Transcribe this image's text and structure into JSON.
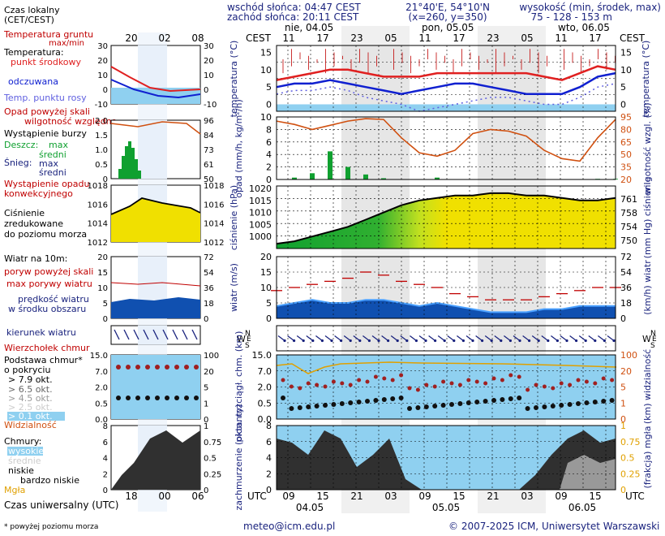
{
  "header": {
    "sunrise": "wschód słońca: 04:47 CEST",
    "sunset": "zachód słońca: 20:11 CEST",
    "coords": "21°40'E, 54°10'N",
    "grid": "(x=260, y=350)",
    "height_title": "wysokość (min, środek, max)",
    "height_values": "75 - 128 - 153 m"
  },
  "legend": {
    "local_time": "Czas lokalny",
    "local_time_zone": "(CET/CEST)",
    "hours_top": [
      "20",
      "02",
      "08"
    ],
    "hours_bottom": [
      "18",
      "00",
      "06"
    ],
    "ground_temp": "Temperatura gruntu",
    "max_min": "max/min",
    "temperature": "Temperatura:",
    "midpoint": "punkt środkowy",
    "perceived": "odczuwana",
    "dew_point": "Temp. punktu rosy",
    "rain_above": "Opad powyżej skali",
    "humidity": "wilgotność względna",
    "storm": "Wystąpienie burzy",
    "rain": "Deszcz:",
    "max": "max",
    "mean": "średni",
    "snow": "Śnieg:",
    "conv": "Wystąpienie opadu konwekcyjnego",
    "pressure": "Ciśnienie zredukowane do poziomu morza",
    "wind_title": "Wiatr na 10m:",
    "gust_above": "poryw powyżej skali",
    "max_gust": "max porywy wiatru",
    "wind_speed": "prędkość wiatru w środku obszaru",
    "wind_dir": "kierunek wiatru",
    "cloud_top": "Wierzchołek chmur",
    "cloud_base": "Podstawa chmur* o pokryciu",
    "okt": [
      "> 7.9 okt.",
      "> 6.5 okt.",
      "> 4.5 okt.",
      "> 2.5 okt.",
      "> 0.1 okt."
    ],
    "visibility": "Widzialność",
    "clouds": "Chmury:",
    "cloud_types": [
      "wysokie",
      "średnie",
      "niskie",
      "bardzo niskie"
    ],
    "fog": "Mgła",
    "utc": "Czas uniwersalny (UTC)",
    "footnote": "* powyżej poziomu morza"
  },
  "axes": {
    "cest": "CEST",
    "utc": "UTC",
    "days_top": [
      "nie, 04.05",
      "pon, 05.05",
      "wto, 06.05"
    ],
    "days_bottom": [
      "04.05",
      "05.05",
      "06.05"
    ],
    "hours_cest": [
      "11",
      "17",
      "23",
      "05",
      "11",
      "17",
      "23",
      "05",
      "11",
      "17"
    ],
    "hours_utc": [
      "09",
      "15",
      "21",
      "03",
      "09",
      "15",
      "21",
      "03",
      "09",
      "15"
    ],
    "temp_label": "temperatura (°C)",
    "rain_label": "opad (mm/h, kg/m²/h)",
    "humidity_label": "wilgotność wzgl. (%)",
    "pressure_label": "ciśnienie (hPa)",
    "pressure_label_r": "(mm Hg) ciśnienie",
    "wind_label": "wiatr (m/s)",
    "wind_label_r": "(km/h) wiatr",
    "cloud_label": "pion. rozciągł. chm. (km)",
    "vis_label": "(km) widzialność",
    "cover_label": "zachmurzenie (oktanty)",
    "fog_label": "(frakcja) mgła",
    "temp_ticks": [
      "15",
      "10",
      "5",
      "0"
    ],
    "rain_ticks": [
      "10",
      "8",
      "6",
      "4",
      "2",
      "0"
    ],
    "hum_ticks": [
      "95",
      "80",
      "65",
      "50",
      "35",
      "20"
    ],
    "press_ticks": [
      "1020",
      "1015",
      "1010",
      "1005",
      "1000"
    ],
    "press_ticks_r": [
      "761",
      "758",
      "754",
      "750"
    ],
    "wind_ticks": [
      "20",
      "15",
      "10",
      "5",
      "0"
    ],
    "wind_ticks_r": [
      "72",
      "54",
      "36",
      "18",
      "0"
    ],
    "cloud_ticks": [
      "15.0",
      "7.0",
      "2.0",
      "0.5",
      "0.0"
    ],
    "vis_ticks": [
      "100",
      "20",
      "5",
      "1",
      "0"
    ],
    "cover_ticks": [
      "8",
      "6",
      "4",
      "2",
      "0"
    ],
    "fog_ticks": [
      "1",
      "0.75",
      "0.5",
      "0.25",
      "0"
    ],
    "mini_temp_l": [
      "30",
      "20",
      "10",
      "0",
      "-10"
    ],
    "mini_temp_r": [
      "30",
      "20",
      "10",
      "0",
      "-10"
    ],
    "mini_rain_l": [
      "2.0",
      "1.5",
      "1.0",
      "0.5",
      "0"
    ],
    "mini_rain_r": [
      "96",
      "84",
      "73",
      "61",
      "50"
    ],
    "mini_press_l": [
      "1018",
      "1016",
      "1014",
      "1012"
    ],
    "mini_press_r": [
      "1018",
      "1016",
      "1014",
      "1012"
    ],
    "mini_wind_l": [
      "20",
      "15",
      "10",
      "5",
      "0"
    ],
    "mini_wind_r": [
      "72",
      "54",
      "36",
      "18",
      "0"
    ],
    "mini_cloud_l": [
      "15.0",
      "7.0",
      "2.0",
      "0.5",
      "0.0"
    ],
    "mini_cloud_r": [
      "100",
      "20",
      "5",
      "1",
      "0"
    ],
    "mini_cover_l": [
      "8",
      "6",
      "4",
      "2",
      "0"
    ],
    "mini_cover_r": [
      "1",
      "0.75",
      "0.5",
      "0.25",
      "0"
    ],
    "wind_n": "N",
    "wind_w": "W",
    "wind_e": "E",
    "wind_s": "S"
  },
  "footer": {
    "email": "meteo@icm.edu.pl",
    "copyright": "© 2007-2025 ICM, Uniwersytet Warszawski"
  },
  "colors": {
    "temp": "#e02020",
    "perceived": "#1020d0",
    "dew": "#6060e0",
    "humidity": "#d05010",
    "pressure_fill": "#f0e000",
    "pressure_low": "#10a030",
    "wind_fill": "#1050b0",
    "wind_green": "#10a030",
    "gust": "#c00000",
    "sky": "#8fd0f0",
    "cloud_dark": "#303030"
  },
  "chart_data": [
    {
      "type": "line",
      "x": [
        "04.05 09",
        "04.05 12",
        "04.05 15",
        "04.05 18",
        "04.05 21",
        "05.05 00",
        "05.05 03",
        "05.05 06",
        "05.05 09",
        "05.05 12",
        "05.05 15",
        "05.05 18",
        "05.05 21",
        "06.05 00",
        "06.05 03",
        "06.05 06",
        "06.05 09",
        "06.05 12",
        "06.05 15",
        "06.05 18"
      ],
      "series": [
        {
          "values": [
            7,
            8,
            9,
            10,
            10,
            9,
            8,
            8,
            8,
            9,
            9,
            9,
            9,
            9,
            9,
            8,
            7,
            9,
            11,
            10
          ]
        },
        {
          "values": [
            5,
            6,
            6,
            7,
            6,
            5,
            4,
            3,
            4,
            5,
            6,
            6,
            5,
            4,
            3,
            3,
            3,
            5,
            8,
            9
          ]
        },
        {
          "values": [
            3,
            4,
            4,
            5,
            4,
            2,
            1,
            0,
            -2,
            -1,
            0,
            1,
            2,
            2,
            1,
            0,
            0,
            2,
            5,
            6
          ]
        }
      ],
      "ylim": [
        -2,
        17
      ],
      "ylabel": "temperatura (°C)"
    },
    {
      "type": "bar",
      "x": [
        "04.05 09",
        "04.05 12",
        "04.05 15",
        "04.05 18",
        "04.05 21",
        "05.05 00",
        "05.05 03",
        "05.05 06",
        "05.05 09",
        "05.05 12",
        "05.05 15",
        "05.05 18",
        "05.05 21",
        "06.05 00",
        "06.05 03",
        "06.05 06",
        "06.05 09",
        "06.05 12",
        "06.05 15",
        "06.05 18"
      ],
      "values": [
        0,
        0.3,
        1.0,
        4.5,
        2.0,
        0.8,
        0.2,
        0,
        0,
        0.3,
        0,
        0,
        0,
        0,
        0,
        0,
        0,
        0,
        0.1,
        0.1
      ],
      "humidity": [
        90,
        86,
        80,
        85,
        90,
        93,
        92,
        70,
        52,
        48,
        55,
        75,
        80,
        78,
        72,
        55,
        45,
        42,
        70,
        92
      ],
      "ylim": [
        0,
        10
      ],
      "ylabel": "opad (mm/h, kg/m²/h)"
    },
    {
      "type": "area",
      "x": [
        "04.05 09",
        "04.05 12",
        "04.05 15",
        "04.05 18",
        "04.05 21",
        "05.05 00",
        "05.05 03",
        "05.05 06",
        "05.05 09",
        "05.05 12",
        "05.05 15",
        "05.05 18",
        "05.05 21",
        "06.05 00",
        "06.05 03",
        "06.05 06",
        "06.05 09",
        "06.05 12",
        "06.05 15",
        "06.05 18"
      ],
      "values": [
        997,
        998,
        1000,
        1002,
        1004,
        1007,
        1010,
        1013,
        1015,
        1016,
        1017,
        1017,
        1018,
        1018,
        1017,
        1017,
        1016,
        1015,
        1015,
        1016
      ],
      "ylim": [
        995,
        1021
      ],
      "ylabel": "ciśnienie (hPa)"
    },
    {
      "type": "area",
      "x": [
        "04.05 09",
        "04.05 12",
        "04.05 15",
        "04.05 18",
        "04.05 21",
        "05.05 00",
        "05.05 03",
        "05.05 06",
        "05.05 09",
        "05.05 12",
        "05.05 15",
        "05.05 18",
        "05.05 21",
        "06.05 00",
        "06.05 03",
        "06.05 06",
        "06.05 09",
        "06.05 12",
        "06.05 15",
        "06.05 18"
      ],
      "values": [
        4,
        5,
        6,
        5,
        5,
        6,
        6,
        5,
        4,
        5,
        4,
        3,
        2,
        2,
        2,
        3,
        3,
        4,
        4,
        4
      ],
      "gusts": [
        9,
        10,
        11,
        12,
        13,
        15,
        14,
        12,
        11,
        10,
        8,
        7,
        6,
        6,
        6,
        7,
        8,
        9,
        10,
        10
      ],
      "ylim": [
        0,
        20
      ],
      "ylabel": "wiatr (m/s)"
    }
  ]
}
